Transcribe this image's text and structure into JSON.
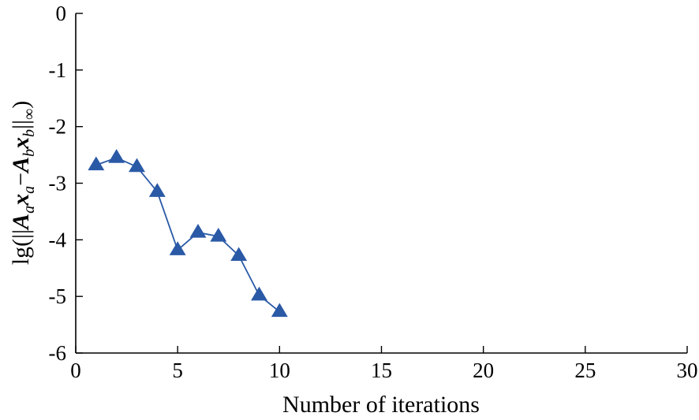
{
  "chart_data": {
    "type": "line",
    "xlabel": "Number of iterations",
    "ylabel": {
      "prefix": "lg(||",
      "A": "A",
      "a_sub": "a",
      "x": "x",
      "a_sub2": "a",
      "minus": "−",
      "A2": "A",
      "b_sub": "b",
      "x2": "x",
      "b_sub2": "b",
      "suffix": "||",
      "inf": "∞",
      "close": ")"
    },
    "xlim": [
      0,
      30
    ],
    "ylim": [
      -6,
      0
    ],
    "xticks": [
      0,
      5,
      10,
      15,
      20,
      25,
      30
    ],
    "yticks": [
      0,
      -1,
      -2,
      -3,
      -4,
      -5,
      -6
    ],
    "ytick_labels": [
      "0",
      "-1",
      "-2",
      "-3",
      "-4",
      "-5",
      "-6"
    ],
    "grid": false,
    "series": [
      {
        "marker": "triangle",
        "color": "#2a59a6",
        "x": [
          1,
          2,
          3,
          4,
          5,
          6,
          7,
          8,
          9,
          10
        ],
        "y": [
          -2.68,
          -2.55,
          -2.71,
          -3.15,
          -4.18,
          -3.87,
          -3.94,
          -4.28,
          -4.98,
          -5.27
        ]
      }
    ]
  }
}
